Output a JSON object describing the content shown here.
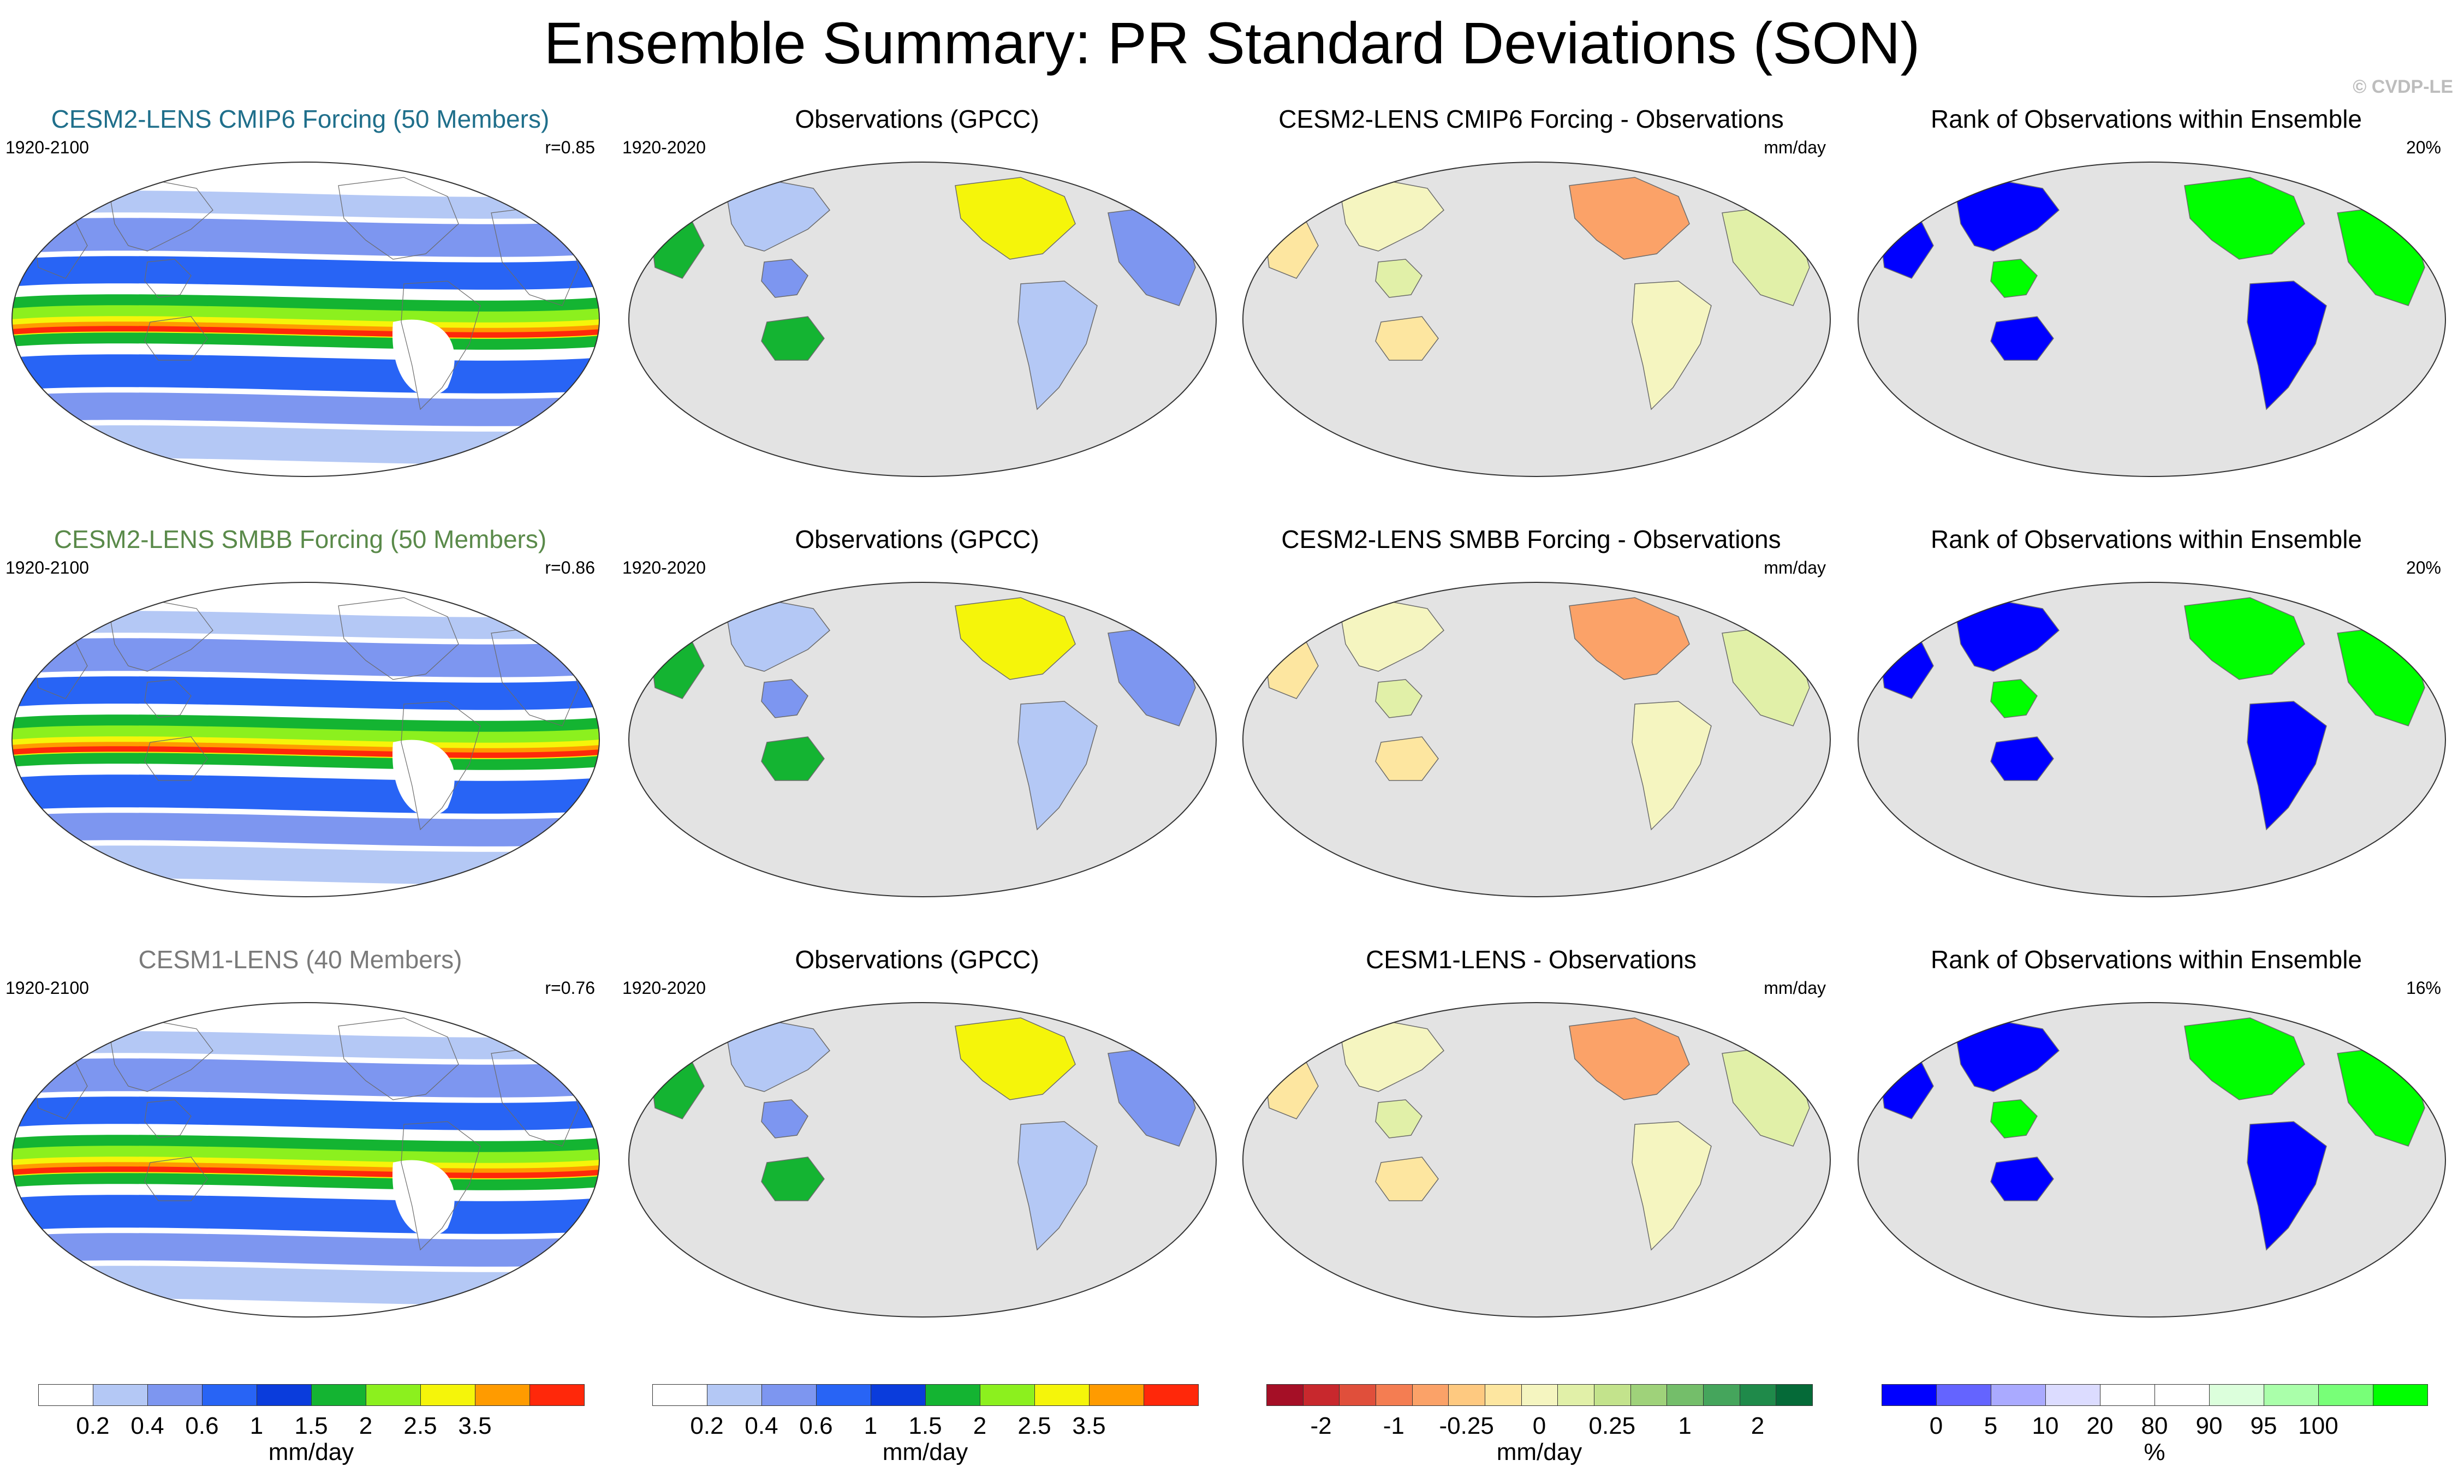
{
  "title": "Ensemble Summary: PR Standard Deviations (SON)",
  "credit": "© CVDP-LE",
  "rows": [
    {
      "model": {
        "title": "CESM2-LENS CMIP6 Forcing (50 Members)",
        "title_color": "#1f6f8b",
        "period": "1920-2100",
        "corr": "r=0.85"
      },
      "obs": {
        "title": "Observations (GPCC)",
        "period": "1920-2020"
      },
      "diff": {
        "title": "CESM2-LENS CMIP6 Forcing - Observations",
        "units": "mm/day"
      },
      "rank": {
        "title": "Rank of Observations within Ensemble",
        "pct": "20%"
      }
    },
    {
      "model": {
        "title": "CESM2-LENS SMBB Forcing (50 Members)",
        "title_color": "#5a8a4a",
        "period": "1920-2100",
        "corr": "r=0.86"
      },
      "obs": {
        "title": "Observations (GPCC)",
        "period": "1920-2020"
      },
      "diff": {
        "title": "CESM2-LENS SMBB Forcing - Observations",
        "units": "mm/day"
      },
      "rank": {
        "title": "Rank of Observations within Ensemble",
        "pct": "20%"
      }
    },
    {
      "model": {
        "title": "CESM1-LENS (40 Members)",
        "title_color": "#7a7a7a",
        "period": "1920-2100",
        "corr": "r=0.76"
      },
      "obs": {
        "title": "Observations (GPCC)",
        "period": "1920-2020"
      },
      "diff": {
        "title": "CESM1-LENS - Observations",
        "units": "mm/day"
      },
      "rank": {
        "title": "Rank of Observations within Ensemble",
        "pct": "16%"
      }
    }
  ],
  "colorbars": [
    {
      "colors": [
        "#ffffff",
        "#b4c8f5",
        "#7d96f0",
        "#2864f5",
        "#0a3cdc",
        "#14b432",
        "#8cf01e",
        "#f5f50a",
        "#ff9b00",
        "#ff280a"
      ],
      "ticks": [
        "0.2",
        "0.4",
        "0.6",
        "1",
        "1.5",
        "2",
        "2.5",
        "3.5"
      ],
      "unit": "mm/day"
    },
    {
      "colors": [
        "#ffffff",
        "#b4c8f5",
        "#7d96f0",
        "#2864f5",
        "#0a3cdc",
        "#14b432",
        "#8cf01e",
        "#f5f50a",
        "#ff9b00",
        "#ff280a"
      ],
      "ticks": [
        "0.2",
        "0.4",
        "0.6",
        "1",
        "1.5",
        "2",
        "2.5",
        "3.5"
      ],
      "unit": "mm/day"
    },
    {
      "colors": [
        "#a50f26",
        "#c8282d",
        "#e04f3b",
        "#f47d52",
        "#fba268",
        "#fec980",
        "#fde6a0",
        "#f5f5c0",
        "#e1f0a8",
        "#c3e38c",
        "#9fd27a",
        "#74be6a",
        "#45a55c",
        "#1f8a4a",
        "#056a38"
      ],
      "ticks": [
        "-2",
        "-1",
        "-0.25",
        "0",
        "0.25",
        "1",
        "2"
      ],
      "unit": "mm/day"
    },
    {
      "colors": [
        "#0000ff",
        "#6464ff",
        "#aaaaff",
        "#dcdcff",
        "#ffffff",
        "#ffffff",
        "#dcffdc",
        "#aaffaa",
        "#78ff78",
        "#00ff00"
      ],
      "ticks": [
        "0",
        "5",
        "10",
        "20",
        "80",
        "90",
        "95",
        "100"
      ],
      "unit": "%"
    }
  ],
  "map_layers": {
    "model": [
      "#b4c8f5",
      "#7d96f0",
      "#2864f5",
      "#14b432",
      "#8cf01e",
      "#f5f50a",
      "#ff9b00",
      "#ff280a"
    ],
    "obs_land": [
      "#b4c8f5",
      "#7d96f0",
      "#14b432",
      "#f5f50a"
    ],
    "diff_land": [
      "#f5f5c0",
      "#e1f0a8",
      "#fde6a0",
      "#fba268"
    ],
    "rank_land": [
      "#0000ff",
      "#00ff00"
    ],
    "ocean_gray": "#e3e3e3"
  }
}
